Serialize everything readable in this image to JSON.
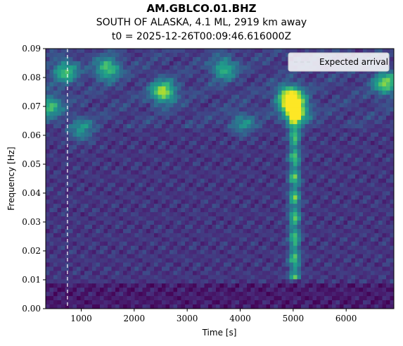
{
  "header": {
    "station": "AM.GBLCO.01.BHZ",
    "event": "SOUTH OF ALASKA, 4.1 ML, 2919 km away",
    "origin_time": "t0 = 2025-12-26T00:09:46.616000Z"
  },
  "chart_data": {
    "type": "heatmap",
    "xlabel": "Time [s]",
    "ylabel": "Frequency [Hz]",
    "xlim": [
      330,
      6900
    ],
    "ylim": [
      0.0,
      0.09
    ],
    "xticks": [
      1000,
      2000,
      3000,
      4000,
      5000,
      6000
    ],
    "xtick_labels": [
      "1000",
      "2000",
      "3000",
      "4000",
      "5000",
      "6000"
    ],
    "yticks": [
      0.0,
      0.01,
      0.02,
      0.03,
      0.04,
      0.05,
      0.06,
      0.07,
      0.08,
      0.09
    ],
    "ytick_labels": [
      "0.00",
      "0.01",
      "0.02",
      "0.03",
      "0.04",
      "0.05",
      "0.06",
      "0.07",
      "0.08",
      "0.09"
    ],
    "colormap": "viridis",
    "expected_arrival": {
      "time": 740,
      "label": "Expected arrival",
      "color": "#ffffff",
      "style": "dashed"
    },
    "features": [
      {
        "kind": "vertical-band",
        "time_range": [
          4900,
          5150
        ],
        "freq_range": [
          0.01,
          0.07
        ],
        "intensity": 0.6
      },
      {
        "kind": "peak",
        "time": 4950,
        "freq": 0.073,
        "intensity": 1.0
      },
      {
        "kind": "peak",
        "time": 5050,
        "freq": 0.068,
        "intensity": 0.75
      },
      {
        "kind": "peak",
        "time": 2550,
        "freq": 0.075,
        "intensity": 0.7
      },
      {
        "kind": "peak",
        "time": 1500,
        "freq": 0.083,
        "intensity": 0.55
      },
      {
        "kind": "peak",
        "time": 700,
        "freq": 0.082,
        "intensity": 0.5
      },
      {
        "kind": "peak",
        "time": 6750,
        "freq": 0.078,
        "intensity": 0.6
      },
      {
        "kind": "peak",
        "time": 3700,
        "freq": 0.083,
        "intensity": 0.45
      },
      {
        "kind": "peak",
        "time": 400,
        "freq": 0.07,
        "intensity": 0.5
      },
      {
        "kind": "peak",
        "time": 1000,
        "freq": 0.062,
        "intensity": 0.35
      },
      {
        "kind": "peak",
        "time": 4050,
        "freq": 0.064,
        "intensity": 0.3
      }
    ],
    "legend": {
      "position": "upper-right",
      "entries": [
        "Expected arrival"
      ]
    },
    "grid": false
  }
}
